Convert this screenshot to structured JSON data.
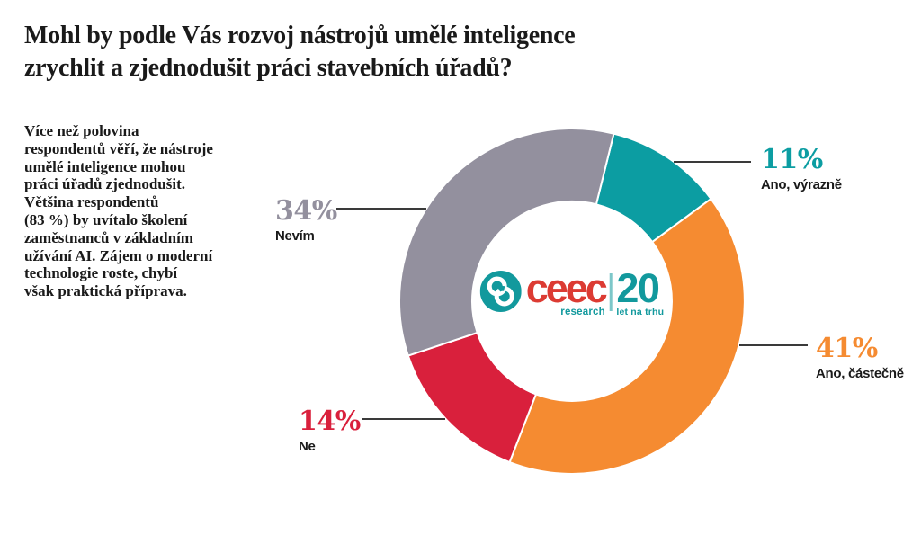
{
  "header": {
    "title_lines": [
      "Mohl by podle Vás rozvoj nástrojů umělé inteligence",
      "zrychlit a zjednodušit práci stavebních úřadů?"
    ]
  },
  "intro": {
    "lines": [
      "Více než polovina",
      "respondentů věří, že nástroje",
      "umělé inteligence mohou",
      "práci úřadů zjednodušit.",
      "Většina respondentů",
      "(83 %) by uvítalo školení",
      "zaměstnanců v základním",
      "užívání AI. Zájem o moderní",
      "technologie roste, chybí",
      "však praktická příprava."
    ]
  },
  "chart_data": {
    "type": "pie",
    "donut": true,
    "title": "Mohl by podle Vás rozvoj nástrojů umělé inteligence zrychlit a zjednodušit práci stavebních úřadů?",
    "start_angle_deg": 14,
    "direction": "clockwise",
    "categories": [
      "Ano, výrazně",
      "Ano, částečně",
      "Ne",
      "Nevím"
    ],
    "values": [
      11,
      41,
      14,
      34
    ],
    "segments": [
      {
        "key": "ano-vyrazne",
        "label": "Ano, výrazně",
        "value": 11,
        "display": "11%",
        "color": "#0C9DA2"
      },
      {
        "key": "ano-castecne",
        "label": "Ano, částečně",
        "value": 41,
        "display": "41%",
        "color": "#F58B31"
      },
      {
        "key": "ne",
        "label": "Ne",
        "value": 14,
        "display": "14%",
        "color": "#D9203C"
      },
      {
        "key": "nevim",
        "label": "Nevím",
        "value": 34,
        "display": "34%",
        "color": "#93909E"
      }
    ],
    "center_logo": {
      "brand": "ceec",
      "brand_sub": "research",
      "badge_number": "20",
      "badge_sub": "let na trhu",
      "brand_color": "#DC3B33",
      "accent_color": "#12999D"
    }
  },
  "colors": {
    "text": "#1A1A1A",
    "leader_line": "#3A3A3A",
    "background": "#FFFFFF"
  }
}
